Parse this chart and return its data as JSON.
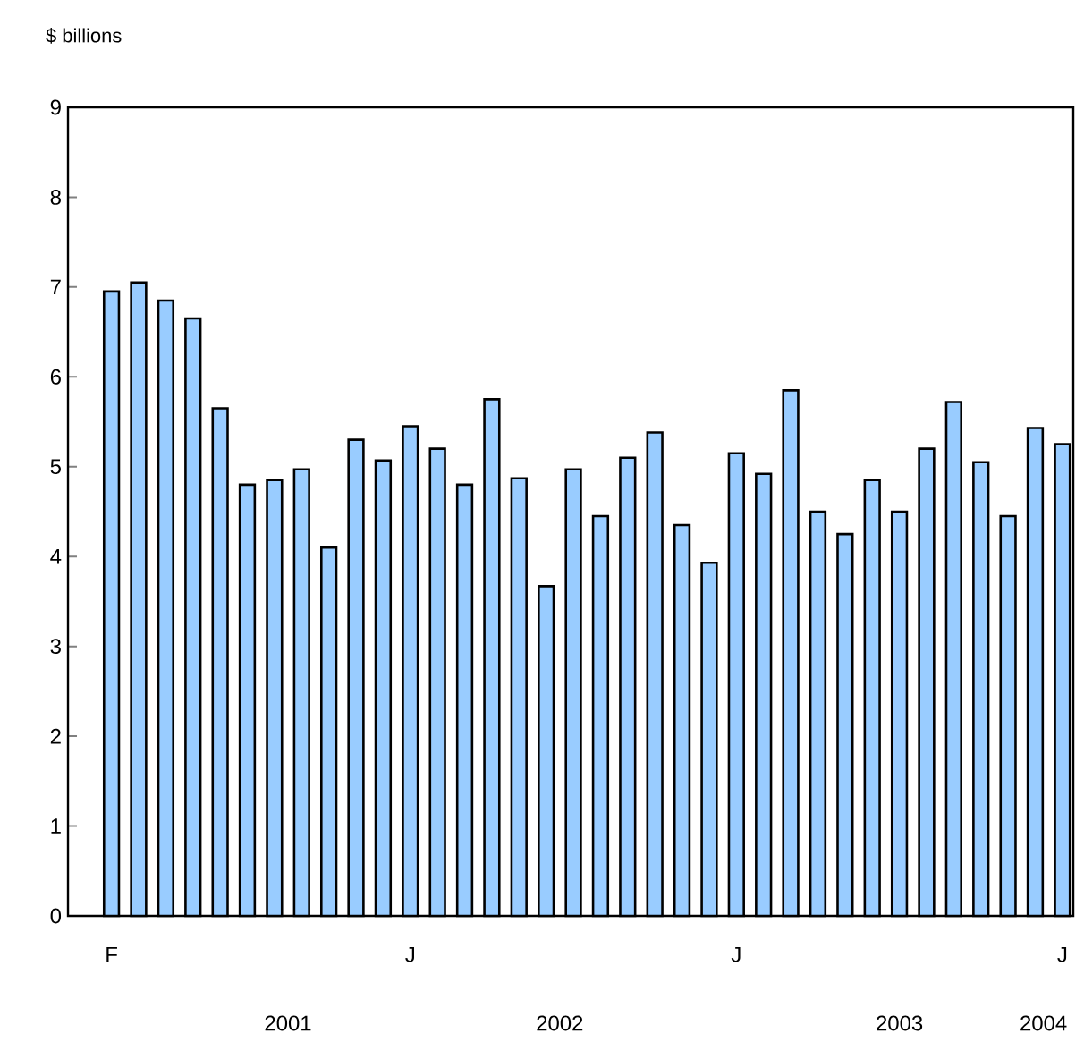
{
  "chart_data": {
    "type": "bar",
    "ylabel": "$ billions",
    "categories": [
      "F",
      null,
      null,
      null,
      null,
      null,
      null,
      null,
      null,
      null,
      null,
      "J",
      null,
      null,
      null,
      null,
      null,
      null,
      null,
      null,
      null,
      null,
      null,
      "J",
      null,
      null,
      null,
      null,
      null,
      null,
      null,
      null,
      null,
      null,
      null,
      "J"
    ],
    "values": [
      6.95,
      7.05,
      6.85,
      6.65,
      5.65,
      4.8,
      4.85,
      4.97,
      4.1,
      5.3,
      5.07,
      5.45,
      5.2,
      4.8,
      5.75,
      4.87,
      3.67,
      4.97,
      4.45,
      5.1,
      5.38,
      4.35,
      3.93,
      5.15,
      4.92,
      5.85,
      4.5,
      4.25,
      4.85,
      4.5,
      5.2,
      5.72,
      5.05,
      4.45,
      5.43,
      5.25
    ],
    "color": "#99ccff",
    "ylim": [
      0,
      9
    ],
    "yticks": [
      0,
      1,
      2,
      3,
      4,
      5,
      6,
      7,
      8,
      9
    ],
    "grid": false,
    "annotations": [
      "2001",
      "2002",
      "2003",
      "2004"
    ]
  }
}
